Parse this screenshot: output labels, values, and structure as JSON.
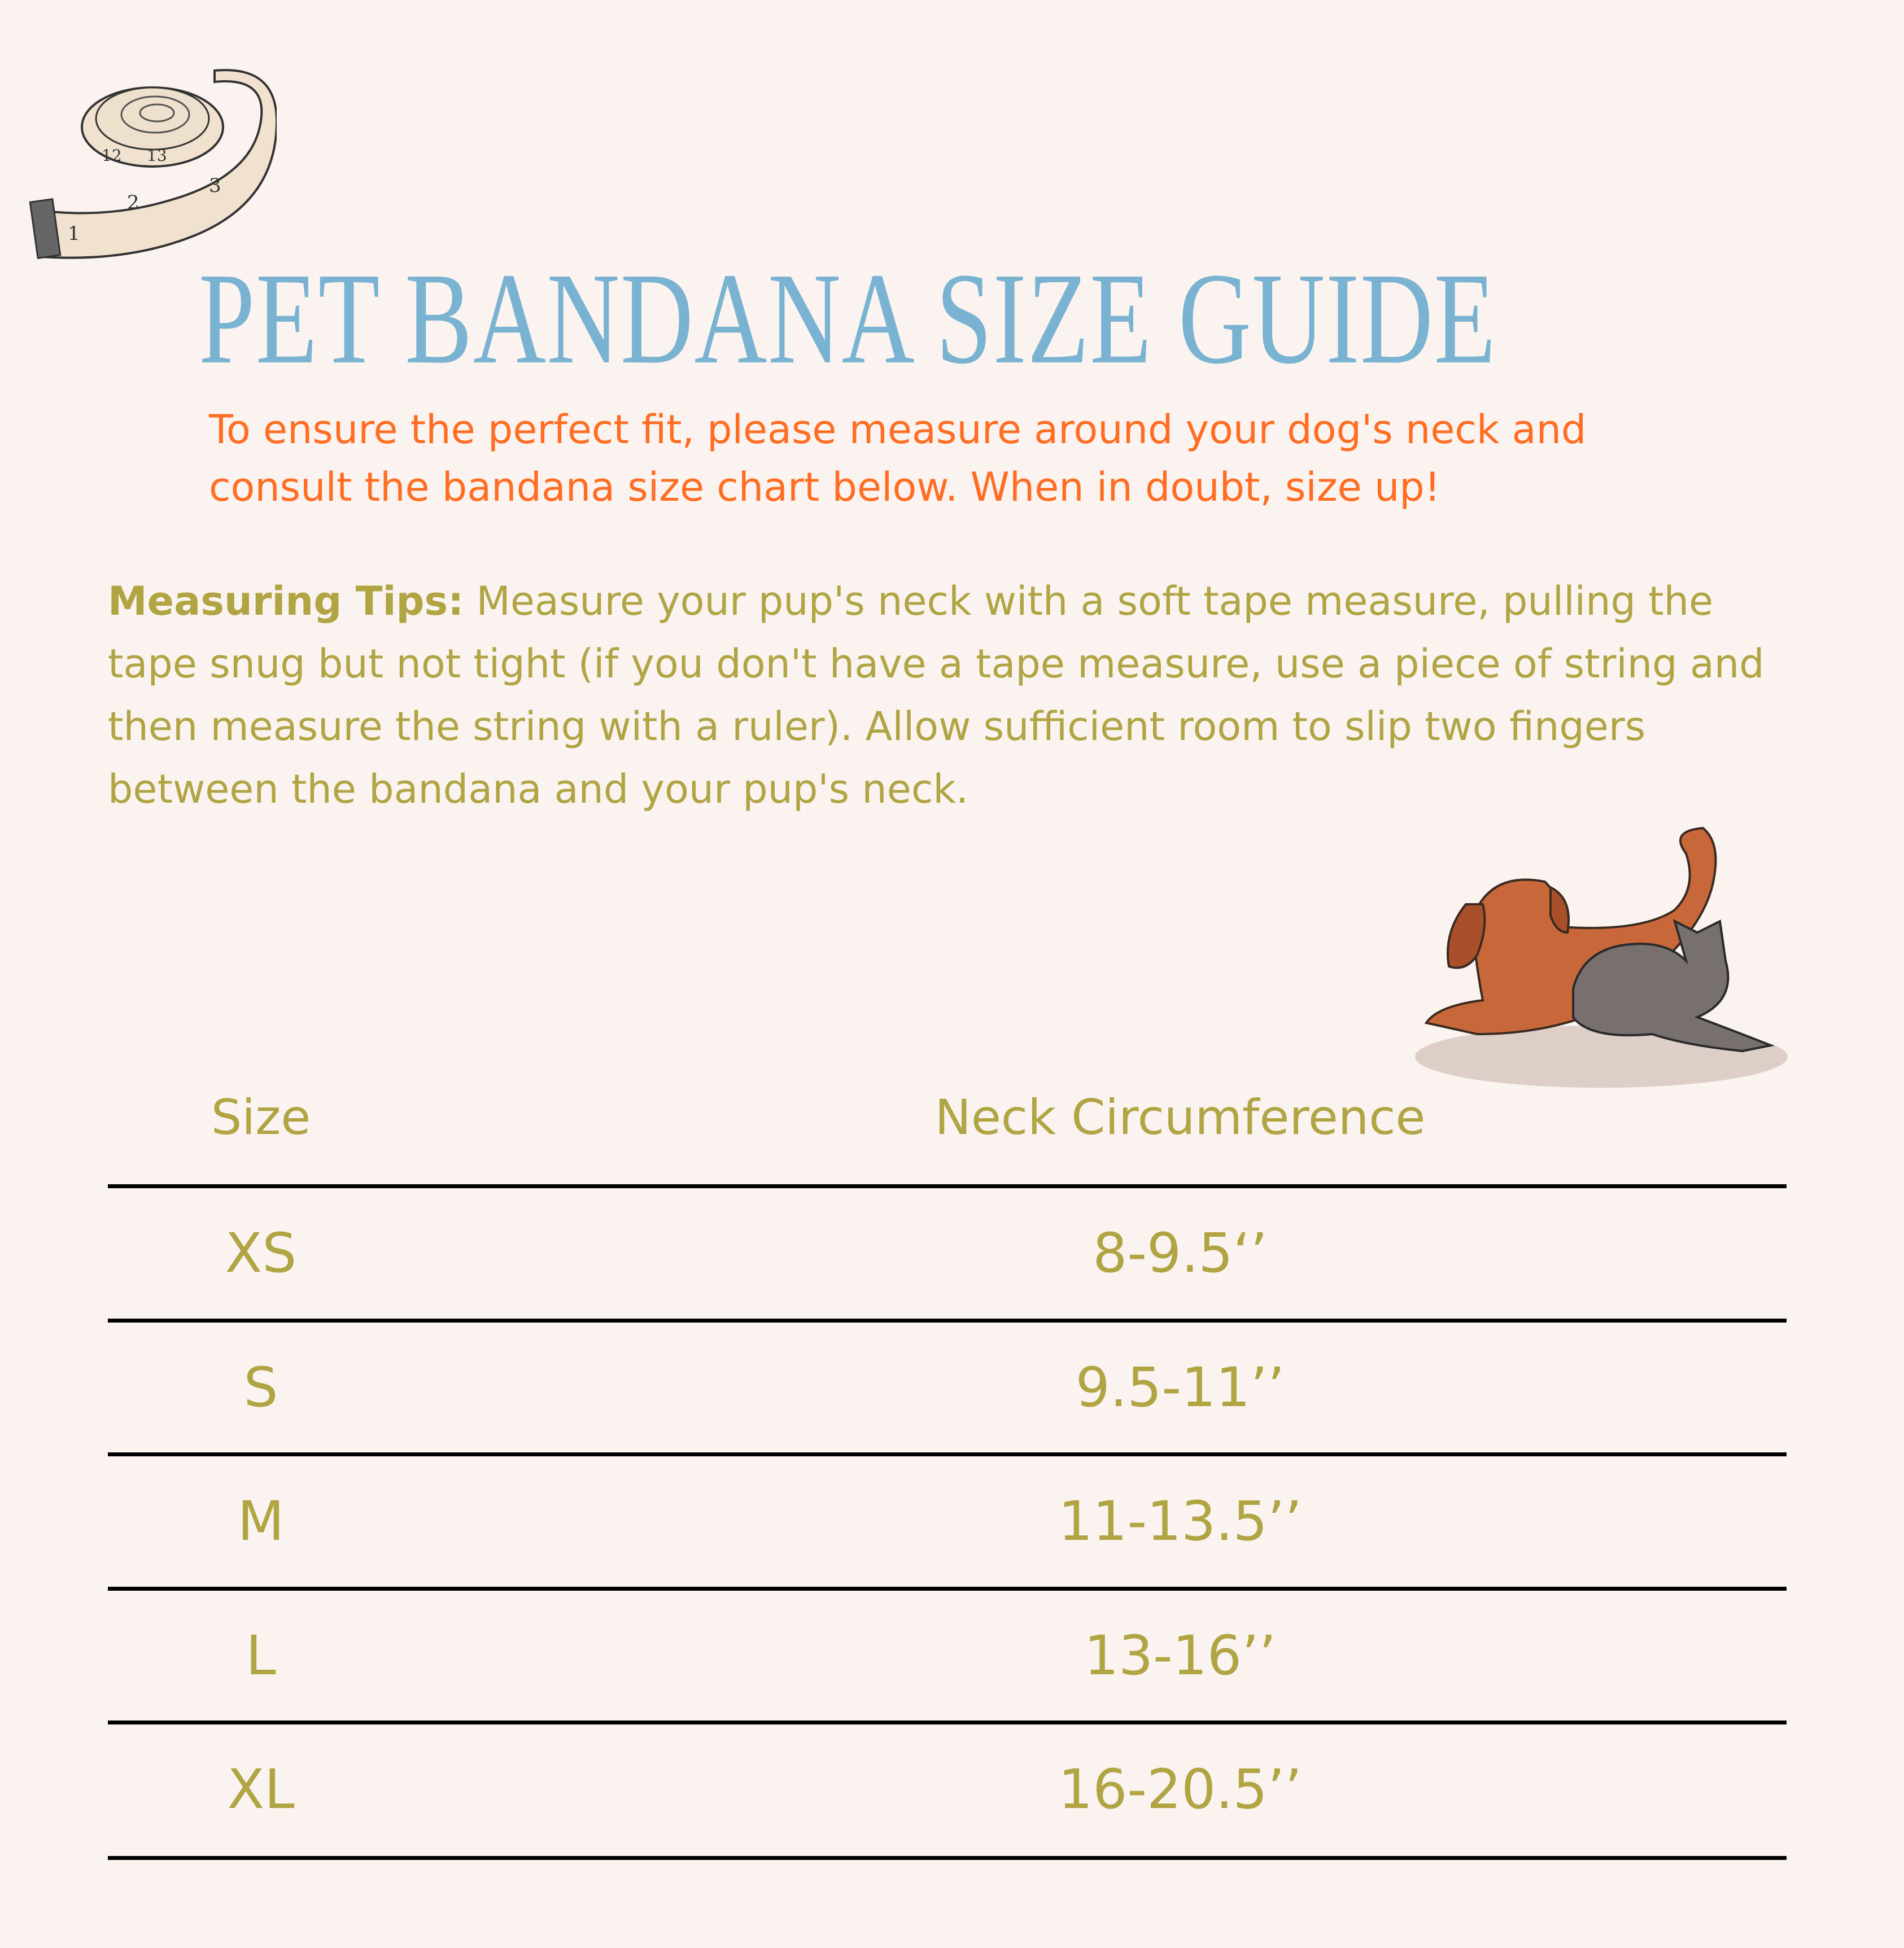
{
  "colors": {
    "title": "#79b3d1",
    "accent": "#ff6d22",
    "olive": "#b0a443",
    "background": "#faf3f0"
  },
  "title": "PET BANDANA SIZE GUIDE",
  "intro": "To ensure the perfect fit, please measure around your dog's neck and consult the bandana size chart below. When in doubt, size up!",
  "tips": {
    "label": "Measuring Tips:",
    "text": " Measure your pup's neck with a soft tape measure, pulling the tape snug but not tight (if you don't have a tape measure, use a piece of string and then measure the string with a ruler). Allow sufficient room to slip two fingers between the bandana and your pup's neck."
  },
  "illustrations": {
    "tape_measure": "tape-measure-icon",
    "pets": "dog-and-cat-illustration",
    "tape_numbers": [
      "1",
      "2",
      "3",
      "12",
      "13"
    ]
  },
  "table": {
    "headers": [
      "Size",
      "Neck Circumference"
    ],
    "rows": [
      {
        "size": "XS",
        "neck": "8-9.5‘’"
      },
      {
        "size": "S",
        "neck": "9.5-11’’"
      },
      {
        "size": "M",
        "neck": "11-13.5’’"
      },
      {
        "size": "L",
        "neck": "13-16’’"
      },
      {
        "size": "XL",
        "neck": "16-20.5’’"
      }
    ]
  }
}
